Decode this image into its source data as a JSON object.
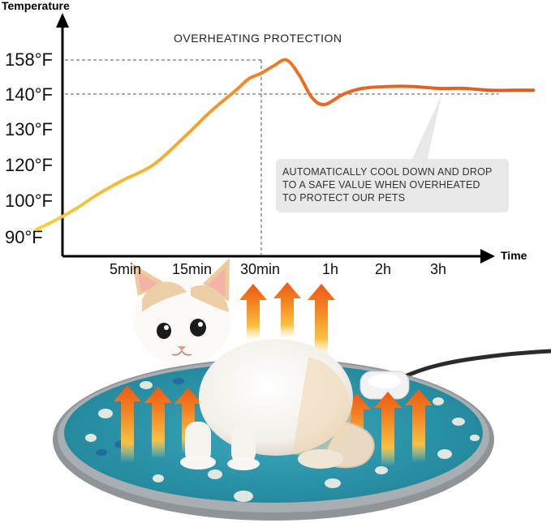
{
  "chart_data": {
    "type": "line",
    "title": "OVERHEATING PROTECTION",
    "xlabel": "Time",
    "ylabel": "Temperature",
    "y_tick_labels": [
      "90°F",
      "100°F",
      "120°F",
      "130°F",
      "140°F",
      "158°F"
    ],
    "x_tick_labels": [
      "5min",
      "15min",
      "30min",
      "1h",
      "2h",
      "3h"
    ],
    "x_positions": [
      0,
      1,
      2,
      3,
      4,
      5
    ],
    "series": [
      {
        "name": "Temperature",
        "x": [
          -1.55,
          -1.2,
          -0.9,
          -0.6,
          -0.2,
          0.3,
          0.8,
          1.2,
          1.6,
          1.8,
          2.0,
          2.2,
          2.4,
          2.6,
          2.8,
          3.0,
          3.3,
          3.6,
          4.0,
          4.4,
          4.8,
          5.2,
          5.6,
          6.0,
          6.3
        ],
        "y": [
          92,
          95,
          98,
          103,
          111,
          120,
          128,
          135,
          142,
          148,
          151,
          155,
          158,
          150,
          139,
          137,
          140,
          143,
          144,
          144,
          143,
          143,
          142,
          142,
          142
        ]
      }
    ],
    "reference_lines": [
      {
        "label": "158°F",
        "value": 158,
        "x_end": 2.0
      },
      {
        "label": "140°F",
        "value": 140,
        "x_end": 5.75
      }
    ],
    "annotation": {
      "lines": [
        "AUTOMATICALLY COOL DOWN AND DROP",
        "TO A SAFE VALUE WHEN  OVERHEATED",
        "TO PROTECT OUR PETS"
      ]
    }
  },
  "colors": {
    "curve_start": "#f5c73a",
    "curve_mid": "#f39a2e",
    "curve_end": "#e2561e",
    "arrow_orange": "#f26a1b",
    "arrow_yellow": "#f8c84a",
    "mat_teal": "#2f9db0",
    "mat_rim": "#8a8f94",
    "callout_bg": "#e8e8e8"
  }
}
